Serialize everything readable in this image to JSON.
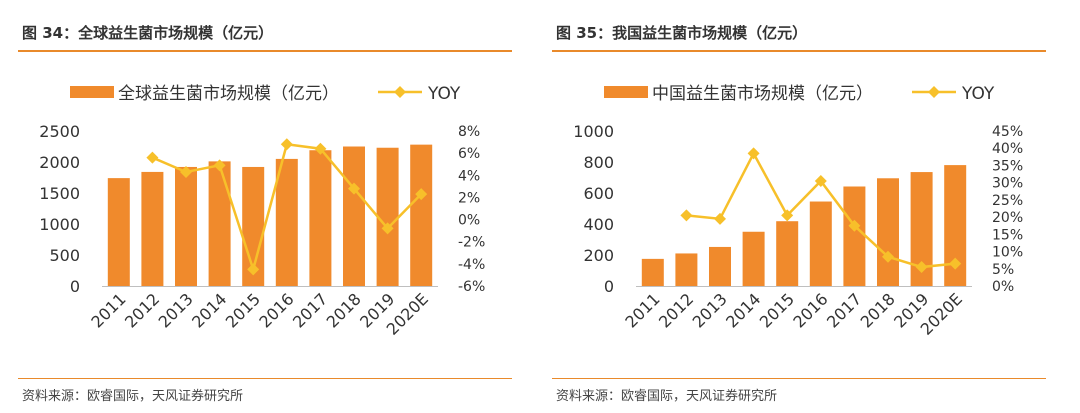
{
  "colors": {
    "bar": "#F08A2C",
    "line": "#F7C02A",
    "rule": "#E98A2B"
  },
  "left": {
    "title": "图 34：全球益生菌市场规模（亿元）",
    "source": "资料来源：欧睿国际，天风证券研究所"
  },
  "right": {
    "title": "图 35：我国益生菌市场规模（亿元）",
    "source": "资料来源：欧睿国际，天风证券研究所"
  },
  "chart_data": [
    {
      "type": "bar",
      "categories": [
        "2011",
        "2012",
        "2013",
        "2014",
        "2015",
        "2016",
        "2017",
        "2018",
        "2019",
        "2020E"
      ],
      "series": [
        {
          "name": "全球益生菌市场规模（亿元）",
          "type": "bar",
          "axis": "left",
          "values": [
            1740,
            1840,
            1920,
            2010,
            1920,
            2050,
            2190,
            2250,
            2230,
            2280
          ]
        },
        {
          "name": "YOY",
          "type": "line",
          "axis": "right",
          "values": [
            null,
            5.6,
            4.3,
            4.9,
            -4.5,
            6.8,
            6.4,
            2.8,
            -0.8,
            2.3
          ]
        }
      ],
      "y_left": {
        "min": 0,
        "max": 2500,
        "ticks": [
          "0",
          "500",
          "1000",
          "1500",
          "2000",
          "2500"
        ]
      },
      "y_right": {
        "min": -6,
        "max": 8,
        "ticks": [
          "-6%",
          "-4%",
          "-2%",
          "0%",
          "2%",
          "4%",
          "6%",
          "8%"
        ]
      },
      "legend": "top",
      "grid": false
    },
    {
      "type": "bar",
      "categories": [
        "2011",
        "2012",
        "2013",
        "2014",
        "2015",
        "2016",
        "2017",
        "2018",
        "2019",
        "2020E"
      ],
      "series": [
        {
          "name": "中国益生菌市场规模（亿元）",
          "type": "bar",
          "axis": "left",
          "values": [
            175,
            210,
            252,
            350,
            418,
            545,
            642,
            695,
            735,
            780
          ]
        },
        {
          "name": "YOY",
          "type": "line",
          "axis": "right",
          "values": [
            null,
            20.5,
            19.5,
            38.5,
            20.5,
            30.5,
            17.5,
            8.5,
            5.5,
            6.5
          ]
        }
      ],
      "y_left": {
        "min": 0,
        "max": 1000,
        "ticks": [
          "0",
          "200",
          "400",
          "600",
          "800",
          "1000"
        ]
      },
      "y_right": {
        "min": 0,
        "max": 45,
        "ticks": [
          "0%",
          "5%",
          "10%",
          "15%",
          "20%",
          "25%",
          "30%",
          "35%",
          "40%",
          "45%"
        ]
      },
      "legend": "top",
      "grid": false
    }
  ]
}
